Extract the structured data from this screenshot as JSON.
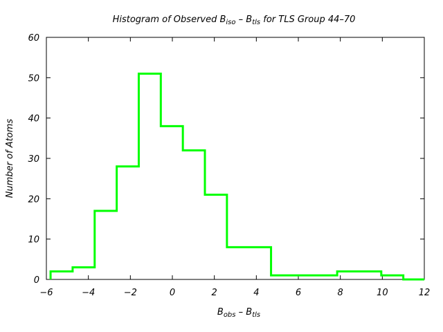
{
  "chart_data": {
    "type": "histogram",
    "title": {
      "prefix": "Histogram of Observed B",
      "sub1": "iso",
      "mid": " – B",
      "sub2": "tls",
      "suffix": " for TLS Group 44–70"
    },
    "xlabel": {
      "main1": "B",
      "sub1": "obs",
      "mid": " – B",
      "sub2": "tls"
    },
    "ylabel": "Number of Atoms",
    "xlim": [
      -6,
      12
    ],
    "ylim": [
      0,
      60
    ],
    "xticks": [
      "−6",
      "−4",
      "−2",
      "0",
      "2",
      "4",
      "6",
      "8",
      "10",
      "12"
    ],
    "xtick_values": [
      -6,
      -4,
      -2,
      0,
      2,
      4,
      6,
      8,
      10,
      12
    ],
    "yticks": [
      "0",
      "10",
      "20",
      "30",
      "40",
      "50",
      "60"
    ],
    "ytick_values": [
      0,
      10,
      20,
      30,
      40,
      50,
      60
    ],
    "bin_edges": [
      -5.8,
      -4.75,
      -3.7,
      -2.65,
      -1.6,
      -0.55,
      0.5,
      1.55,
      2.6,
      3.65,
      4.7,
      5.75,
      6.8,
      7.85,
      8.9,
      9.95,
      11.0,
      12.0
    ],
    "counts": [
      2,
      3,
      17,
      28,
      51,
      38,
      32,
      21,
      8,
      8,
      1,
      1,
      1,
      2,
      2,
      1,
      0
    ],
    "line_color": "#00ff00",
    "grid": false
  }
}
